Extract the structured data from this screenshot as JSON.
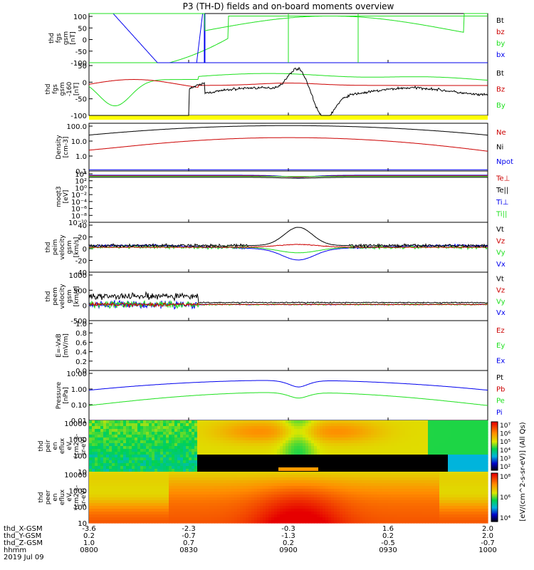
{
  "title": "P3 (TH-D) fields and on-board moments overview",
  "colors": {
    "black": "#000000",
    "red": "#cc0000",
    "green": "#1ee01e",
    "blue": "#0000ee",
    "yellow": "#ffff00"
  },
  "chart_data": {
    "type": "line",
    "title": "P3 (TH-D) fields and on-board moments overview",
    "x_time_labels": [
      "0800",
      "0830",
      "0900",
      "0930",
      "1000"
    ],
    "x_time_hours": [
      8.0,
      8.5,
      9.0,
      9.5,
      10.0
    ],
    "ephemeris": {
      "labels": [
        "thd_X-GSM",
        "thd_Y-GSM",
        "thd_Z-GSM",
        "hhmm",
        "2019 Jul 09"
      ],
      "rows": [
        [
          "-3.6",
          "-2.3",
          "-0.3",
          "1.6",
          "2.0"
        ],
        [
          "0.2",
          "-0.7",
          "-1.3",
          "0.2",
          "2.0"
        ],
        [
          "1.0",
          "0.7",
          "0.2",
          "-0.5",
          "-0.7"
        ],
        [
          "0800",
          "0830",
          "0900",
          "0930",
          "1000"
        ]
      ]
    },
    "panels": [
      {
        "id": "fgs",
        "ylabel": [
          "thd",
          "fgs",
          "gsm",
          "[nT]"
        ],
        "scale": "linear",
        "ylim": [
          -100,
          100
        ],
        "ticks": [
          "100",
          "50",
          "0",
          "-50",
          "-100"
        ],
        "legend": [
          {
            "text": "Bt",
            "color": "black"
          },
          {
            "text": "bz",
            "color": "red"
          },
          {
            "text": "by",
            "color": "green"
          },
          {
            "text": "bx",
            "color": "blue"
          }
        ]
      },
      {
        "id": "fgs-dsl",
        "ylabel": [
          "thd",
          "fgs",
          "gsm",
          "-160",
          "[nT]"
        ],
        "scale": "linear",
        "ylim": [
          -120,
          100
        ],
        "ticks": [
          "50",
          "0",
          "-50",
          "-100"
        ],
        "legend": [
          {
            "text": "Bt",
            "color": "black"
          },
          {
            "text": "Bz",
            "color": "red"
          },
          {
            "text": "By",
            "color": "green"
          }
        ]
      },
      {
        "id": "density",
        "ylabel": [
          "Density",
          "[cm-3]"
        ],
        "scale": "log",
        "ylim": [
          0.08,
          300
        ],
        "ticks": [
          "100.0",
          "10.0",
          "1.0",
          "0.1"
        ],
        "legend": [
          {
            "text": "Ne",
            "color": "red"
          },
          {
            "text": "Ni",
            "color": "black"
          },
          {
            "text": "Npot",
            "color": "blue"
          }
        ]
      },
      {
        "id": "temperature",
        "ylabel": [
          "moqt3",
          "[eV]"
        ],
        "scale": "log",
        "ylim": [
          1e-12,
          100000.0
        ],
        "ticks": [
          "10⁴",
          "10²",
          "10⁰",
          "10⁻²",
          "10⁻⁴",
          "10⁻⁶",
          "10⁻⁸",
          "10⁻¹⁰"
        ],
        "legend": [
          {
            "text": "Te⊥",
            "color": "red"
          },
          {
            "text": "Te||",
            "color": "black"
          },
          {
            "text": "Ti⊥",
            "color": "blue"
          },
          {
            "text": "Ti||",
            "color": "green"
          }
        ]
      },
      {
        "id": "peim-velocity",
        "ylabel": [
          "thd",
          "peim",
          "velocity",
          "gsm",
          "[km/s]"
        ],
        "scale": "linear",
        "ylim": [
          -45,
          45
        ],
        "ticks": [
          "40",
          "20",
          "0",
          "-20",
          "-40"
        ],
        "legend": [
          {
            "text": "Vt",
            "color": "black"
          },
          {
            "text": "Vz",
            "color": "red"
          },
          {
            "text": "Vy",
            "color": "green"
          },
          {
            "text": "Vx",
            "color": "blue"
          }
        ]
      },
      {
        "id": "peem-velocity",
        "ylabel": [
          "thd",
          "peem",
          "velocity",
          "gsm",
          "[km/s]"
        ],
        "scale": "linear",
        "ylim": [
          -500,
          1000
        ],
        "ticks": [
          "1000",
          "500",
          "0",
          "-500"
        ],
        "legend": [
          {
            "text": "Vt",
            "color": "black"
          },
          {
            "text": "Vz",
            "color": "red"
          },
          {
            "text": "Vy",
            "color": "green"
          },
          {
            "text": "Vx",
            "color": "blue"
          }
        ]
      },
      {
        "id": "efield",
        "ylabel": [
          "E=-VxB",
          "[mV/m]"
        ],
        "scale": "linear",
        "ylim": [
          0,
          1
        ],
        "ticks": [
          "1.0",
          "0.8",
          "0.6",
          "0.4",
          "0.2",
          "0.0"
        ],
        "legend": [
          {
            "text": "Ez",
            "color": "red"
          },
          {
            "text": "Ey",
            "color": "green"
          },
          {
            "text": "Ex",
            "color": "blue"
          }
        ]
      },
      {
        "id": "pressure",
        "ylabel": [
          "Pressure",
          "[nPa]"
        ],
        "scale": "log",
        "ylim": [
          0.008,
          30
        ],
        "ticks": [
          "10.00",
          "1.00",
          "0.10",
          "0.01"
        ],
        "legend": [
          {
            "text": "Pt",
            "color": "black"
          },
          {
            "text": "Pb",
            "color": "red"
          },
          {
            "text": "Pe",
            "color": "green"
          },
          {
            "text": "Pi",
            "color": "blue"
          }
        ]
      },
      {
        "id": "peir-spectrogram",
        "ylabel": [
          "thd",
          "peir",
          "en",
          "eflux",
          "eV",
          "(cm2-s-",
          "sr-eV)"
        ],
        "scale": "log",
        "ylim": [
          5,
          25000
        ],
        "ticks": [
          "10000",
          "1000",
          "100",
          "10"
        ]
      },
      {
        "id": "peer-spectrogram",
        "ylabel": [
          "thd",
          "peer",
          "en",
          "eflux",
          "eV",
          "(cm2-s-",
          "sr-eV)"
        ],
        "scale": "log",
        "ylim": [
          5,
          25000
        ],
        "ticks": [
          "10000",
          "1000",
          "100",
          "10"
        ]
      }
    ],
    "colorbar": {
      "label": "[eV/(cm^2-s-sr-eV)] (All Qs)",
      "ticks_top": [
        "10⁷",
        "10⁶",
        "10⁵",
        "10⁴",
        "10³",
        "10²"
      ],
      "ticks_bottom": [
        "10⁸",
        "10⁶",
        "10⁴"
      ]
    }
  }
}
